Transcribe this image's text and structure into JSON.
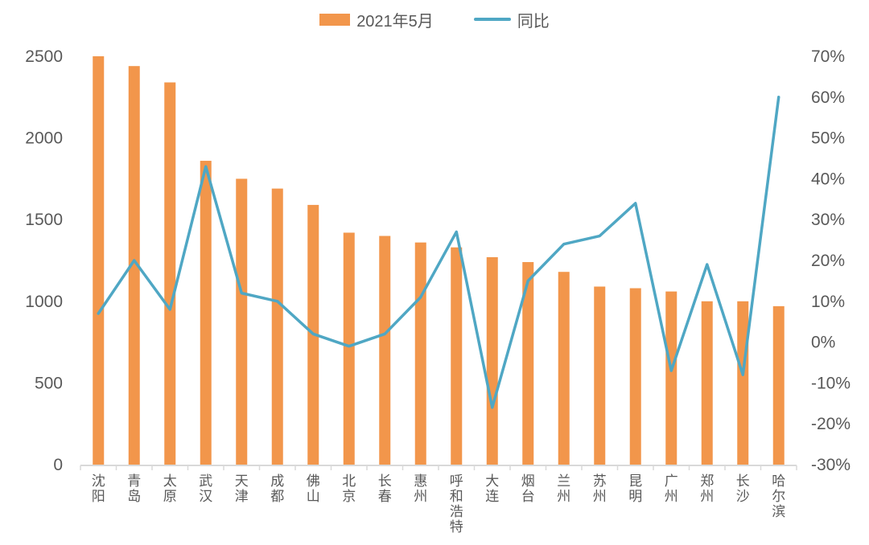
{
  "legend": {
    "items": [
      {
        "label": "2021年5月",
        "marker": "bar-swatch"
      },
      {
        "label": "同比",
        "marker": "line-swatch"
      }
    ]
  },
  "colors": {
    "bar": "#F2964B",
    "line": "#4FA7C4",
    "axis_text": "#595959",
    "axis_line": "#D9D9D9",
    "background": "#FFFFFF"
  },
  "chart_data": {
    "type": "bar",
    "subtype": "bar+line combo, dual axis",
    "title": "",
    "categories": [
      "沈阳",
      "青岛",
      "太原",
      "武汉",
      "天津",
      "成都",
      "佛山",
      "北京",
      "长春",
      "惠州",
      "呼和浩特",
      "大连",
      "烟台",
      "兰州",
      "苏州",
      "昆明",
      "广州",
      "郑州",
      "长沙",
      "哈尔滨"
    ],
    "series": [
      {
        "name": "2021年5月",
        "type": "bar",
        "axis": "left",
        "color": "#F2964B",
        "values": [
          2500,
          2440,
          2340,
          1860,
          1750,
          1690,
          1590,
          1420,
          1400,
          1360,
          1330,
          1270,
          1240,
          1180,
          1090,
          1080,
          1060,
          1000,
          1000,
          970
        ]
      },
      {
        "name": "同比",
        "type": "line",
        "axis": "right",
        "color": "#4FA7C4",
        "unit": "%",
        "values": [
          7,
          20,
          8,
          43,
          12,
          10,
          2,
          -1,
          2,
          11,
          27,
          -16,
          15,
          24,
          26,
          34,
          -7,
          19,
          -8,
          60
        ]
      }
    ],
    "left_axis": {
      "min": 0,
      "max": 2500,
      "tick_step": 500,
      "tick_labels": [
        "0",
        "500",
        "1000",
        "1500",
        "2000",
        "2500"
      ]
    },
    "right_axis": {
      "min": -30,
      "max": 70,
      "tick_step": 10,
      "tick_labels": [
        "-30%",
        "-20%",
        "-10%",
        "0%",
        "10%",
        "20%",
        "30%",
        "40%",
        "50%",
        "60%",
        "70%"
      ]
    },
    "grid": false,
    "legend_position": "top-center",
    "x_label_orientation": "vertical-stacked"
  }
}
